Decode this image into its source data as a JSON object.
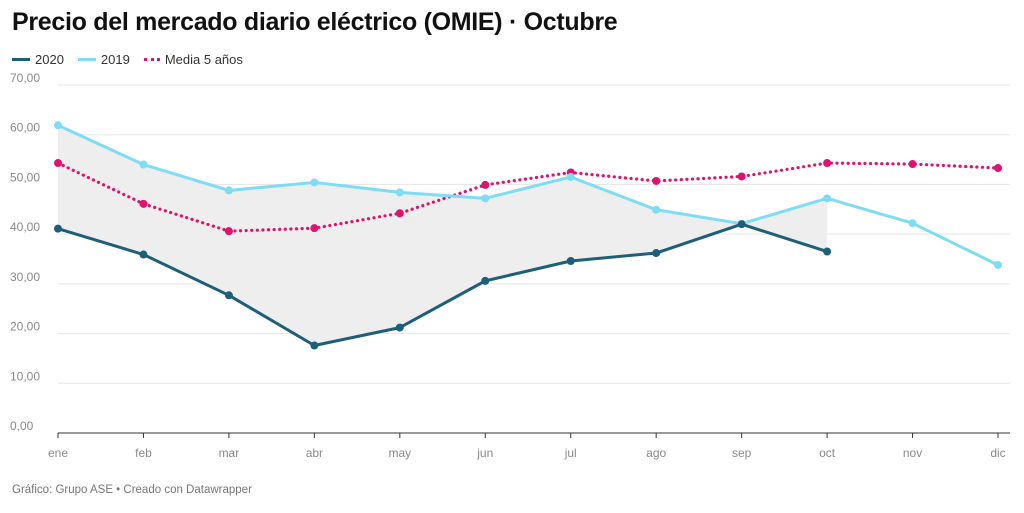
{
  "title": "Precio del mercado diario eléctrico (OMIE) · Octubre",
  "footer": "Gráfico: Grupo ASE • Creado con Datawrapper",
  "chart_data": {
    "type": "line",
    "title": "Precio del mercado diario eléctrico (OMIE) · Octubre",
    "categories": [
      "ene",
      "feb",
      "mar",
      "abr",
      "may",
      "jun",
      "jul",
      "ago",
      "sep",
      "oct",
      "nov",
      "dic"
    ],
    "yticks": [
      "0,00",
      "10,00",
      "20,00",
      "30,00",
      "40,00",
      "50,00",
      "60,00",
      "70,00"
    ],
    "ylim": [
      0,
      70
    ],
    "grid": true,
    "legend_position": "top-left",
    "shaded_area": {
      "between": [
        "2020",
        "2019"
      ],
      "color": "#eeeeee"
    },
    "series": [
      {
        "name": "2020",
        "color": "#1d5f79",
        "style": "solid",
        "values": [
          41.1,
          35.9,
          27.7,
          17.6,
          21.2,
          30.6,
          34.6,
          36.2,
          42.0,
          36.5,
          null,
          null
        ]
      },
      {
        "name": "2019",
        "color": "#7fdcf5",
        "style": "solid",
        "values": [
          61.9,
          54.0,
          48.8,
          50.4,
          48.4,
          47.2,
          51.5,
          44.9,
          42.1,
          47.2,
          42.2,
          33.8
        ]
      },
      {
        "name": "Media 5 años",
        "color": "#e0126e",
        "style": "dotted",
        "values": [
          54.3,
          46.1,
          40.6,
          41.2,
          44.2,
          49.9,
          52.4,
          50.7,
          51.6,
          54.3,
          54.1,
          53.3
        ]
      }
    ]
  }
}
